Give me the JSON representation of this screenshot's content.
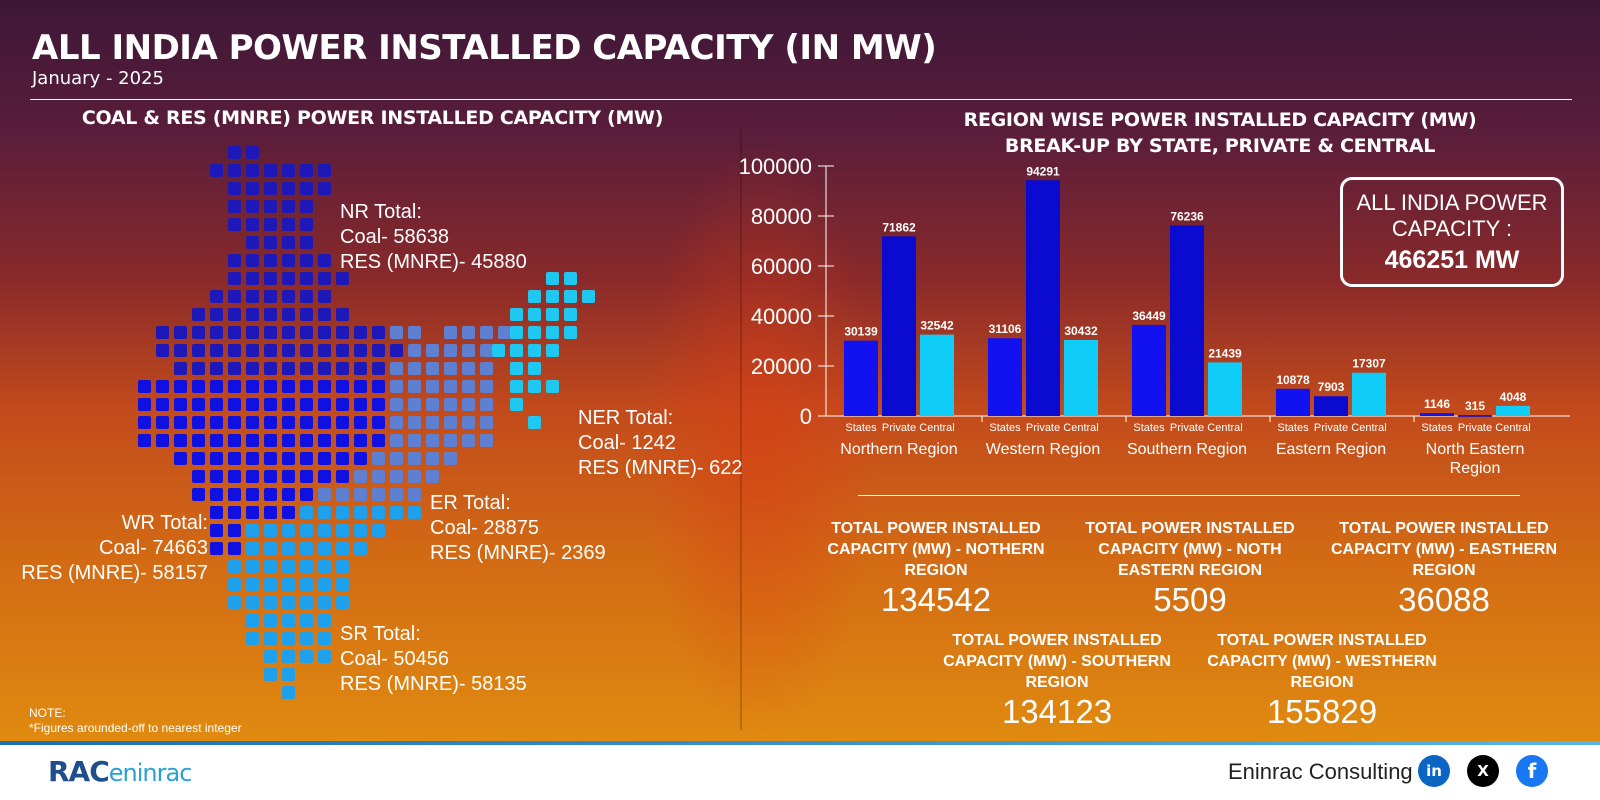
{
  "header": {
    "title": "ALL INDIA POWER INSTALLED CAPACITY (IN MW)",
    "subtitle": "January - 2025"
  },
  "map": {
    "title": "COAL & RES (MNRE) POWER INSTALLED CAPACITY (MW)",
    "regions": {
      "nr": {
        "heading": "NR Total:",
        "coal": "Coal- 58638",
        "res": "RES (MNRE)- 45880",
        "color": "#1f18b8"
      },
      "wr": {
        "heading": "WR Total:",
        "coal": "Coal- 74663",
        "res": "RES (MNRE)- 58157",
        "color": "#1010e0"
      },
      "er": {
        "heading": "ER Total:",
        "coal": "Coal- 28875",
        "res": "RES (MNRE)- 2369",
        "color": "#5f7fd0"
      },
      "ner": {
        "heading": "NER Total:",
        "coal": "Coal- 1242",
        "res": "RES (MNRE)- 622",
        "color": "#1ec8f0"
      },
      "sr": {
        "heading": "SR Total:",
        "coal": "Coal- 50456",
        "res": "RES (MNRE)- 58135",
        "color": "#1ea0ec"
      }
    },
    "note_line1": "NOTE:",
    "note_line2": "*Figures arounded-off to nearest integer"
  },
  "chart_data": {
    "type": "bar",
    "title_line1": "REGION WISE POWER INSTALLED CAPACITY (MW)",
    "title_line2": "BREAK-UP BY STATE, PRIVATE & CENTRAL",
    "categories": [
      "Northern Region",
      "Western Region",
      "Southern Region",
      "Eastern Region",
      "North Eastern Region"
    ],
    "sub_labels": [
      "States",
      "Private",
      "Central"
    ],
    "series": [
      {
        "name": "States",
        "values": [
          30139,
          31106,
          36449,
          10878,
          1146
        ],
        "color": "#1212f0"
      },
      {
        "name": "Private",
        "values": [
          71862,
          94291,
          76236,
          7903,
          315
        ],
        "color": "#0a0ad0"
      },
      {
        "name": "Central",
        "values": [
          32542,
          30432,
          21439,
          17307,
          4048
        ],
        "color": "#10cdf8"
      }
    ],
    "yticks": [
      0,
      20000,
      40000,
      60000,
      80000,
      100000
    ],
    "ylim": [
      0,
      100000
    ]
  },
  "all_india": {
    "label": "ALL INDIA POWER CAPACITY :",
    "value": "466251 MW"
  },
  "totals": [
    {
      "label": "TOTAL POWER INSTALLED CAPACITY (MW) - NOTHERN REGION",
      "value": "134542"
    },
    {
      "label": "TOTAL POWER INSTALLED CAPACITY (MW) - NOTH EASTERN REGION",
      "value": "5509"
    },
    {
      "label": "TOTAL POWER INSTALLED CAPACITY (MW) - EASTHERN REGION",
      "value": "36088"
    },
    {
      "label": "TOTAL POWER INSTALLED CAPACITY (MW) - SOUTHERN REGION",
      "value": "134123"
    },
    {
      "label": "TOTAL POWER INSTALLED CAPACITY (MW) - WESTHERN REGION",
      "value": "155829"
    }
  ],
  "footer": {
    "logo_strong": "RAC",
    "logo_light": "eninrac",
    "brand": "Eninrac Consulting",
    "linkedin_glyph": "in",
    "x_glyph": "X",
    "facebook_glyph": "f",
    "icons": [
      "linkedin-icon",
      "x-icon",
      "facebook-icon"
    ]
  }
}
